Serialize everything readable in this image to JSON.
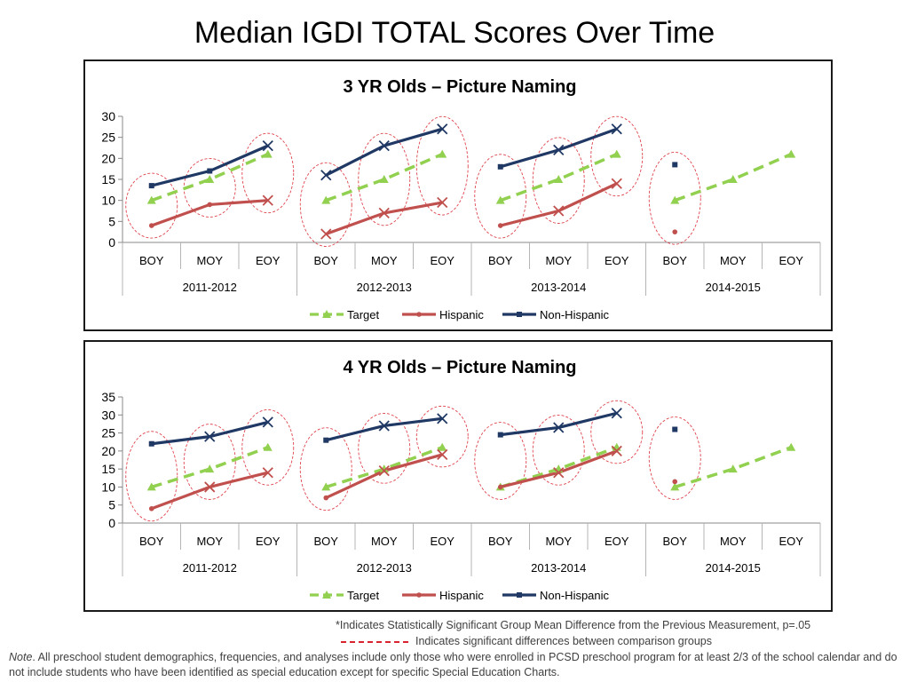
{
  "page": {
    "title": "Median IGDI TOTAL Scores Over Time",
    "footnote_star": "*Indicates Statistically Significant Group Mean Difference from the Previous Measurement, p=.05",
    "footnote_dash": "Indicates significant differences between comparison groups",
    "note_label": "Note",
    "note_text": ". All preschool student demographics, frequencies, and analyses include only those who were enrolled in PCSD preschool program for at least 2/3 of the school calendar and do not include students who have been identified as special education except for specific Special Education Charts."
  },
  "colors": {
    "target": "#92d050",
    "hispanic": "#c0504d",
    "non_hispanic": "#1f3864",
    "ellipse": "#d9232e"
  },
  "chart_data": [
    {
      "type": "line",
      "title": "3 YR Olds – Picture Naming",
      "periods": [
        "BOY",
        "MOY",
        "EOY",
        "BOY",
        "MOY",
        "EOY",
        "BOY",
        "MOY",
        "EOY",
        "BOY",
        "MOY",
        "EOY"
      ],
      "years": [
        "2011-2012",
        "2012-2013",
        "2013-2014",
        "2014-2015"
      ],
      "ylim": [
        0,
        30
      ],
      "yticks": [
        0,
        5,
        10,
        15,
        20,
        25,
        30
      ],
      "series": [
        {
          "name": "Target",
          "style": "dashed",
          "values": [
            10,
            15,
            21,
            10,
            15,
            21,
            10,
            15,
            21,
            10,
            15,
            21
          ]
        },
        {
          "name": "Hispanic",
          "style": "solid",
          "values": [
            4,
            9,
            10,
            2,
            7,
            9.5,
            4,
            7.5,
            14,
            2.5,
            null,
            null
          ]
        },
        {
          "name": "Non-Hispanic",
          "style": "solid",
          "values": [
            13.5,
            17,
            23,
            16,
            23,
            27,
            18,
            22,
            27,
            18.5,
            null,
            null
          ]
        }
      ],
      "significance_markers": [
        2,
        3,
        4,
        5,
        7,
        8
      ],
      "comparison_ellipses": [
        0,
        1,
        2,
        3,
        4,
        5,
        6,
        7,
        8,
        9
      ],
      "legend": [
        "Target",
        "Hispanic",
        "Non-Hispanic"
      ],
      "legend_position": "bottom"
    },
    {
      "type": "line",
      "title": "4 YR Olds – Picture Naming",
      "periods": [
        "BOY",
        "MOY",
        "EOY",
        "BOY",
        "MOY",
        "EOY",
        "BOY",
        "MOY",
        "EOY",
        "BOY",
        "MOY",
        "EOY"
      ],
      "years": [
        "2011-2012",
        "2012-2013",
        "2013-2014",
        "2014-2015"
      ],
      "ylim": [
        0,
        35
      ],
      "yticks": [
        0,
        5,
        10,
        15,
        20,
        25,
        30,
        35
      ],
      "series": [
        {
          "name": "Target",
          "style": "dashed",
          "values": [
            10,
            15,
            21,
            10,
            15,
            21,
            10,
            15,
            21,
            10,
            15,
            21
          ]
        },
        {
          "name": "Hispanic",
          "style": "solid",
          "values": [
            4,
            10,
            14,
            7,
            14.5,
            19,
            10,
            14,
            20,
            11.5,
            null,
            null
          ]
        },
        {
          "name": "Non-Hispanic",
          "style": "solid",
          "values": [
            22,
            24,
            28,
            23,
            27,
            29,
            24.5,
            26.5,
            30.5,
            26,
            null,
            null
          ]
        }
      ],
      "significance_markers": [
        1,
        2,
        4,
        5,
        7,
        8
      ],
      "comparison_ellipses": [
        0,
        1,
        2,
        3,
        4,
        5,
        6,
        7,
        8,
        9
      ],
      "legend": [
        "Target",
        "Hispanic",
        "Non-Hispanic"
      ],
      "legend_position": "bottom"
    }
  ]
}
